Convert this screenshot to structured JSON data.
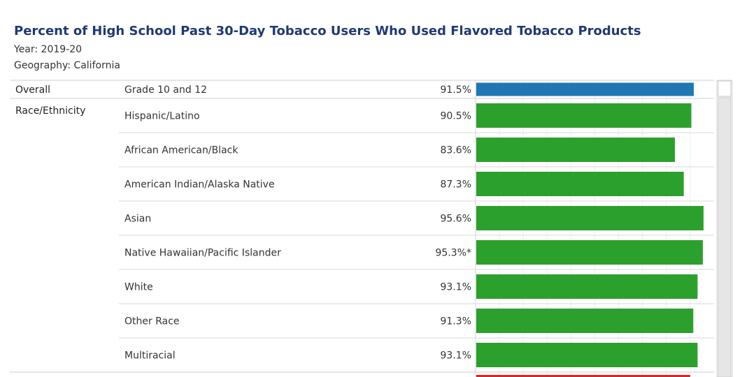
{
  "header": {
    "year_line": "Year: 2019-20",
    "geography_line": "Geography: California"
  },
  "chart_data": {
    "type": "bar",
    "orientation": "horizontal",
    "title": "Percent of High School Past 30-Day Tobacco Users Who Used Flavored Tobacco Products",
    "xlim": [
      0,
      100
    ],
    "grid": true,
    "colors": {
      "overall": "#1f77b4",
      "race": "#2ca02c",
      "next_group": "#d62728"
    },
    "groups": [
      {
        "name": "Overall",
        "color_key": "overall",
        "rows": [
          {
            "category": "Grade 10 and 12",
            "value": 91.5,
            "label": "91.5%"
          }
        ]
      },
      {
        "name": "Race/Ethnicity",
        "color_key": "race",
        "rows": [
          {
            "category": "Hispanic/Latino",
            "value": 90.5,
            "label": "90.5%"
          },
          {
            "category": "African American/Black",
            "value": 83.6,
            "label": "83.6%"
          },
          {
            "category": "American Indian/Alaska Native",
            "value": 87.3,
            "label": "87.3%"
          },
          {
            "category": "Asian",
            "value": 95.6,
            "label": "95.6%"
          },
          {
            "category": "Native Hawaiian/Pacific Islander",
            "value": 95.3,
            "label": "95.3%*"
          },
          {
            "category": "White",
            "value": 93.1,
            "label": "93.1%"
          },
          {
            "category": "Other Race",
            "value": 91.3,
            "label": "91.3%"
          },
          {
            "category": "Multiracial",
            "value": 93.1,
            "label": "93.1%"
          }
        ]
      }
    ]
  }
}
